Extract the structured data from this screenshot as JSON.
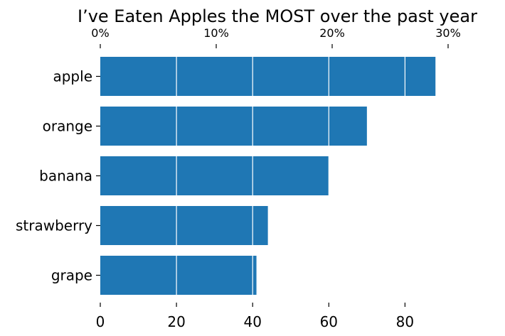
{
  "chart_data": {
    "type": "bar",
    "orientation": "horizontal",
    "title": "I’ve Eaten Apples the MOST over the past year",
    "categories": [
      "apple",
      "orange",
      "banana",
      "strawberry",
      "grape"
    ],
    "values": [
      88,
      70,
      60,
      44,
      41
    ],
    "xlabel": "",
    "ylabel": "",
    "xlim": [
      0,
      100
    ],
    "bottom_ticks": {
      "values": [
        0,
        20,
        40,
        60,
        80
      ],
      "labels": [
        "0",
        "20",
        "40",
        "60",
        "80"
      ]
    },
    "top_ticks": {
      "values": [
        0,
        10,
        20,
        30
      ],
      "labels": [
        "0%",
        "10%",
        "20%",
        "30%"
      ]
    },
    "grid": true,
    "grid_color": "#ffffff",
    "bar_color": "#1f77b4",
    "legend": "none"
  }
}
